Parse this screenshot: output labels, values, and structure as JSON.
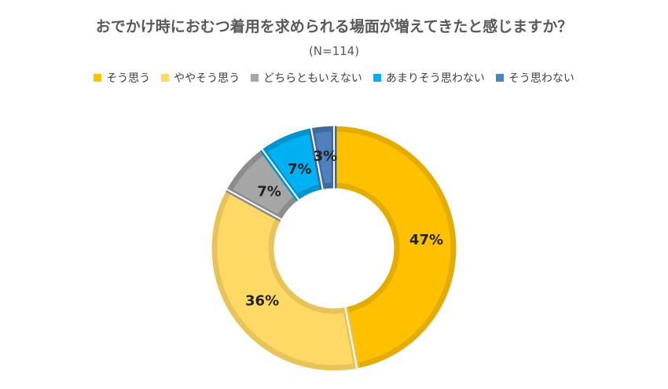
{
  "chart_data": {
    "type": "pie",
    "subtype": "donut",
    "title": "おでかけ時におむつ着用を求められる場面が増えてきたと感じますか？",
    "subtitle": "(N=114)",
    "legend_position": "top",
    "categories": [
      "そう思う",
      "ややそう思う",
      "どちらともいえない",
      "あまりそう思わない",
      "そう思わない"
    ],
    "values": [
      47,
      36,
      7,
      7,
      3
    ],
    "labels": [
      "47%",
      "36%",
      "7%",
      "7%",
      "3%"
    ],
    "colors": [
      "#FFC000",
      "#FFD966",
      "#A6A6A6",
      "#00B0F0",
      "#4F81BD"
    ],
    "border_colors": [
      "#E5AC00",
      "#E8C35A",
      "#8C8C8C",
      "#0095CC",
      "#3E6A9E"
    ]
  }
}
